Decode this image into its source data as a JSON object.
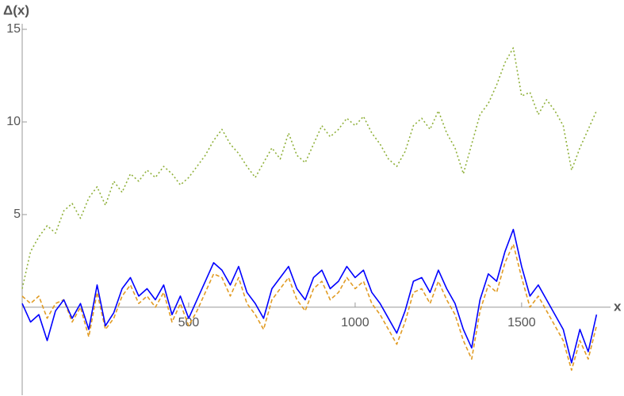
{
  "chart_data": {
    "type": "line",
    "y_label": "Δ(x)",
    "x_label": "x",
    "x": [
      0,
      25,
      50,
      75,
      100,
      125,
      150,
      175,
      200,
      225,
      250,
      275,
      300,
      325,
      350,
      375,
      400,
      425,
      450,
      475,
      500,
      525,
      550,
      575,
      600,
      625,
      650,
      675,
      700,
      725,
      750,
      775,
      800,
      825,
      850,
      875,
      900,
      925,
      950,
      975,
      1000,
      1025,
      1050,
      1075,
      1100,
      1125,
      1150,
      1175,
      1200,
      1225,
      1250,
      1275,
      1300,
      1325,
      1350,
      1375,
      1400,
      1425,
      1450,
      1475,
      1500,
      1525,
      1550,
      1575,
      1600,
      1625,
      1650,
      1675,
      1700,
      1725
    ],
    "series": [
      {
        "color": "#8fb03a",
        "dash": "2,3",
        "values": [
          1.0,
          3.0,
          3.8,
          4.4,
          4.0,
          5.2,
          5.6,
          4.8,
          5.9,
          6.5,
          5.5,
          6.8,
          6.2,
          7.2,
          6.8,
          7.4,
          7.0,
          7.6,
          7.2,
          6.6,
          7.0,
          7.6,
          8.2,
          9.0,
          9.6,
          8.8,
          8.3,
          7.6,
          7.0,
          7.8,
          8.6,
          8.0,
          9.4,
          8.2,
          7.8,
          8.8,
          9.8,
          9.2,
          9.6,
          10.2,
          9.8,
          10.3,
          9.4,
          8.8,
          8.0,
          7.6,
          8.4,
          9.8,
          10.2,
          9.6,
          10.6,
          9.4,
          8.6,
          7.2,
          8.8,
          10.4,
          11.0,
          12.0,
          13.2,
          14.0,
          11.4,
          11.6,
          10.4,
          11.2,
          10.6,
          9.8,
          7.4,
          8.6,
          9.6,
          10.6
        ]
      },
      {
        "color": "#e19c24",
        "dash": "5,3",
        "values": [
          0.6,
          0.2,
          0.6,
          -0.6,
          0.2,
          0.4,
          -0.8,
          0.0,
          -1.6,
          0.8,
          -1.2,
          -0.6,
          0.6,
          1.2,
          0.2,
          0.6,
          0.0,
          0.8,
          -0.8,
          0.2,
          -1.0,
          -0.2,
          0.8,
          1.8,
          1.6,
          0.6,
          1.6,
          0.2,
          -0.4,
          -1.2,
          0.4,
          1.0,
          1.6,
          0.4,
          -0.2,
          1.0,
          1.4,
          0.4,
          0.8,
          1.6,
          1.0,
          1.4,
          0.2,
          -0.4,
          -1.2,
          -2.0,
          -0.8,
          0.8,
          1.0,
          0.2,
          1.4,
          0.4,
          -0.4,
          -1.8,
          -2.8,
          -0.2,
          1.2,
          0.8,
          2.4,
          3.4,
          1.6,
          0.0,
          0.6,
          -0.2,
          -1.0,
          -1.8,
          -3.4,
          -1.8,
          -2.8,
          -1.0
        ]
      },
      {
        "color": "#0000ff",
        "dash": "none",
        "values": [
          0.2,
          -0.8,
          -0.4,
          -1.8,
          -0.2,
          0.4,
          -0.6,
          0.2,
          -1.2,
          1.2,
          -1.0,
          -0.3,
          1.0,
          1.6,
          0.6,
          1.0,
          0.4,
          1.2,
          -0.4,
          0.6,
          -0.6,
          0.4,
          1.4,
          2.4,
          2.0,
          1.2,
          2.2,
          0.8,
          0.2,
          -0.6,
          1.0,
          1.6,
          2.2,
          1.0,
          0.4,
          1.6,
          2.0,
          1.0,
          1.4,
          2.2,
          1.6,
          2.0,
          0.8,
          0.2,
          -0.6,
          -1.4,
          -0.2,
          1.4,
          1.6,
          0.8,
          2.0,
          1.0,
          0.2,
          -1.2,
          -2.2,
          0.4,
          1.8,
          1.4,
          3.0,
          4.2,
          2.2,
          0.6,
          1.2,
          0.4,
          -0.4,
          -1.2,
          -3.0,
          -1.2,
          -2.4,
          -0.4
        ]
      }
    ],
    "xlim": [
      0,
      1767
    ],
    "ylim": [
      -4.75,
      15.3
    ],
    "xticks": [
      500,
      1000,
      1500
    ],
    "yticks": [
      5,
      10,
      15
    ]
  }
}
